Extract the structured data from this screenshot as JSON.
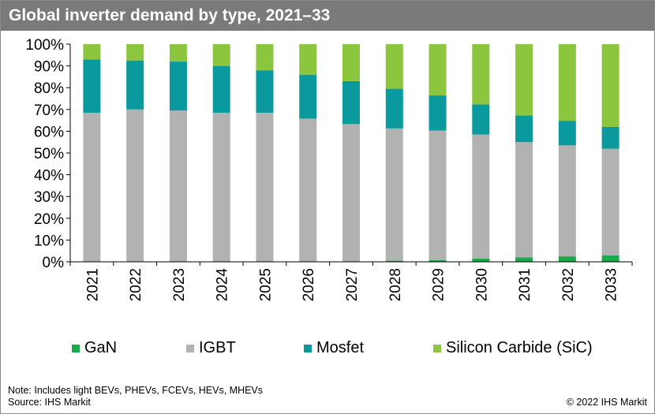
{
  "title": "Global inverter demand by type, 2021–33",
  "chart_data": {
    "type": "bar",
    "stacked": true,
    "percent_stacked": true,
    "categories": [
      "2021",
      "2022",
      "2023",
      "2024",
      "2025",
      "2026",
      "2027",
      "2028",
      "2029",
      "2030",
      "2031",
      "2032",
      "2033"
    ],
    "series": [
      {
        "name": "GaN",
        "color": "#1aaa4a",
        "values": [
          0,
          0,
          0,
          0,
          0,
          0,
          0,
          0.5,
          0.8,
          1.5,
          2,
          2.5,
          3
        ]
      },
      {
        "name": "IGBT",
        "color": "#b2b2b2",
        "values": [
          68.5,
          70,
          69.5,
          68.5,
          68.5,
          65.8,
          63.3,
          60.8,
          59.5,
          57,
          53,
          51,
          49
        ]
      },
      {
        "name": "Mosfet",
        "color": "#0a9a9e",
        "values": [
          24.5,
          22.5,
          22.5,
          21.5,
          19.5,
          20.2,
          19.7,
          18.2,
          16.2,
          13.8,
          12.2,
          11.3,
          10
        ]
      },
      {
        "name": "Silicon Carbide (SiC)",
        "color": "#8cc63f",
        "values": [
          7,
          7.5,
          8,
          10,
          12,
          14,
          17,
          20.5,
          23.5,
          27.7,
          32.8,
          35.2,
          38
        ]
      }
    ],
    "ylim": [
      0,
      100
    ],
    "y_ticks": [
      "0%",
      "10%",
      "20%",
      "30%",
      "40%",
      "50%",
      "60%",
      "70%",
      "80%",
      "90%",
      "100%"
    ],
    "grid": false,
    "legend_position": "bottom"
  },
  "legend": [
    {
      "label": "GaN",
      "color": "#1aaa4a"
    },
    {
      "label": "IGBT",
      "color": "#b2b2b2"
    },
    {
      "label": "Mosfet",
      "color": "#0a9a9e"
    },
    {
      "label": "Silicon Carbide (SiC)",
      "color": "#8cc63f"
    }
  ],
  "footer": {
    "note": "Note: Includes light BEVs, PHEVs, FCEVs, HEVs, MHEVs",
    "source": "Source: IHS Markit",
    "copyright": "© 2022 IHS Markit"
  }
}
